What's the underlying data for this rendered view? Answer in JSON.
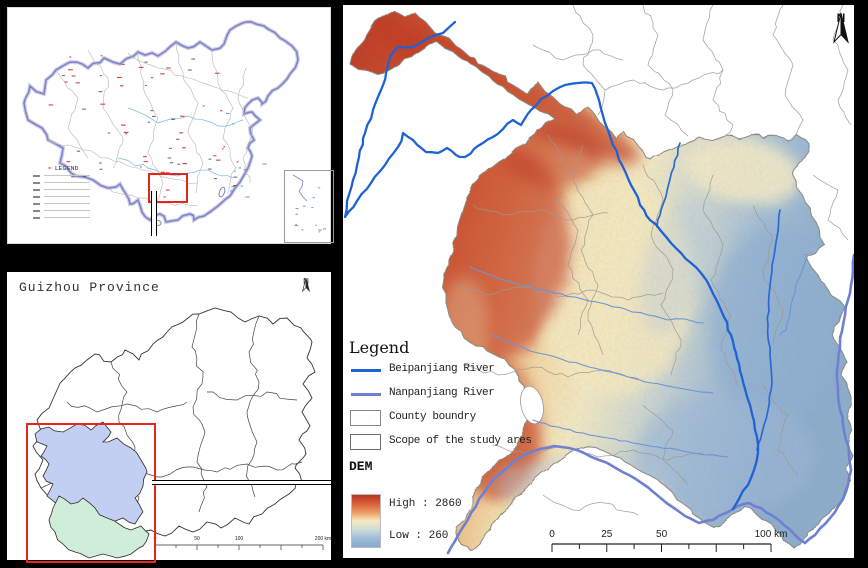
{
  "china_map": {
    "legend_title": "LEGEND",
    "highlight_color": "#e8241c"
  },
  "guizhou_map": {
    "title": "Guizhou Province",
    "north_label": "N",
    "scalebar_labels": [
      "0",
      "50",
      "100",
      "200 km"
    ],
    "highlight_color": "#e8241c",
    "study_area_fills": {
      "beipanjiang": "#c3cff2",
      "nanpanjiang": "#cfeeda"
    }
  },
  "main_map": {
    "north_label": "N",
    "legend": {
      "title": "Legend",
      "items": [
        {
          "label": "Beipanjiang River",
          "symbol": "line",
          "color": "#1e62d6"
        },
        {
          "label": "Nanpanjiang River",
          "symbol": "line",
          "color": "#6f80d2"
        },
        {
          "label": "County boundry",
          "symbol": "box",
          "color": "#8a887e"
        },
        {
          "label": "Scope of the study ares",
          "symbol": "box",
          "color": "#6e6c64"
        }
      ]
    },
    "dem": {
      "label": "DEM",
      "high_label": "High : 2860",
      "low_label": "Low : 260",
      "high_value": 2860,
      "low_value": 260,
      "ramp": [
        "#b93524",
        "#d95f3a",
        "#eb9a62",
        "#f6e9c0",
        "#cfdcd8",
        "#9dbcd8",
        "#86a9cc"
      ]
    },
    "scalebar_labels": [
      "0",
      "25",
      "50",
      "100 km"
    ]
  }
}
